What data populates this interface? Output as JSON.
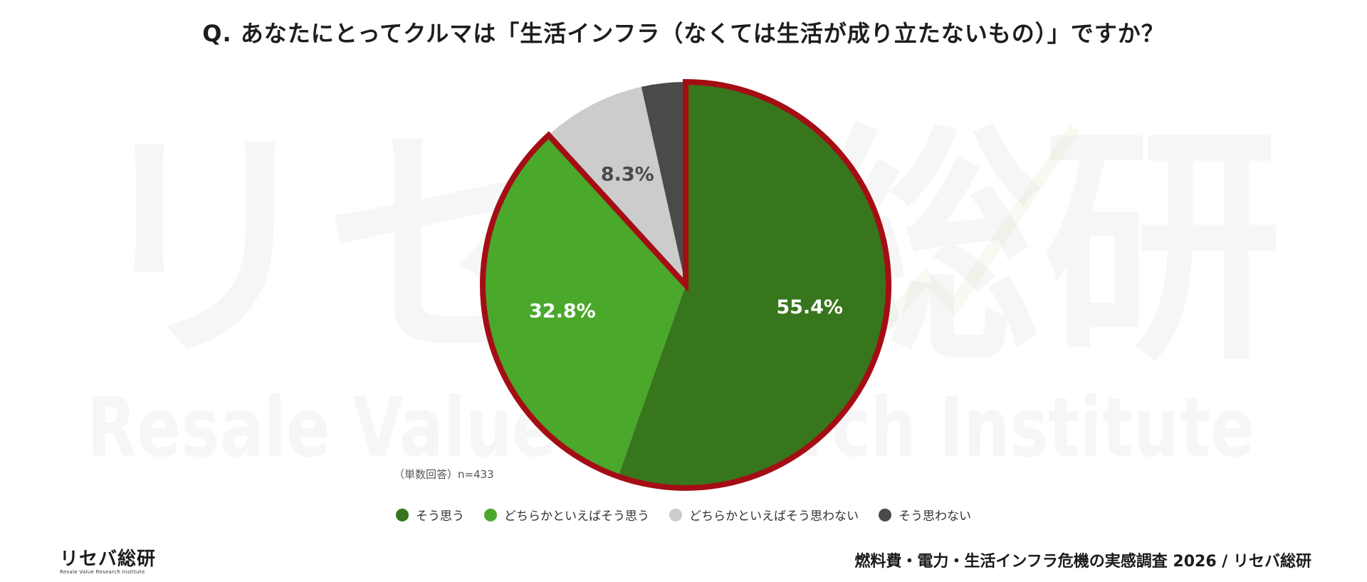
{
  "title": "Q. あなたにとってクルマは「生活インフラ（なくては生活が成り立たないもの）」ですか？",
  "watermark": {
    "main": "リセバ総研",
    "sub": "Resale Value Research Institute"
  },
  "sample_note": "（単数回答）n=433",
  "footer": "燃料費・電力・生活インフラ危機の実感調査 2026 / リセバ総研",
  "logo": {
    "main": "リセバ総研",
    "sub": "Resale Value Research Institute"
  },
  "colors": {
    "highlight_border": "#a50d15",
    "label_light": "#ffffff",
    "label_dark": "#4a4a4a"
  },
  "chart_data": {
    "type": "pie",
    "start_angle_deg": 0,
    "direction": "clockwise",
    "highlighted": [
      "そう思う",
      "どちらかといえばそう思う"
    ],
    "slices": [
      {
        "label": "そう思う",
        "value": 55.4,
        "value_label": "55.4%",
        "color": "#38761d"
      },
      {
        "label": "どちらかといえばそう思う",
        "value": 32.8,
        "value_label": "32.8%",
        "color": "#4aa82b"
      },
      {
        "label": "どちらかといえばそう思わない",
        "value": 8.3,
        "value_label": "8.3%",
        "color": "#cccccc"
      },
      {
        "label": "そう思わない",
        "value": 3.5,
        "value_label": "",
        "color": "#4a4a4a"
      }
    ]
  }
}
